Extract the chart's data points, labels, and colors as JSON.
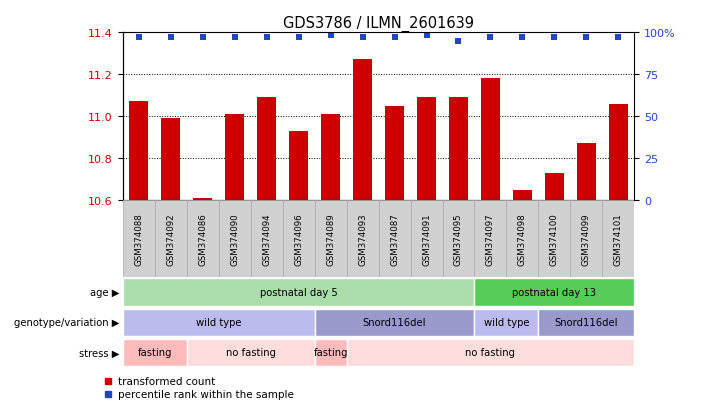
{
  "title": "GDS3786 / ILMN_2601639",
  "samples": [
    "GSM374088",
    "GSM374092",
    "GSM374086",
    "GSM374090",
    "GSM374094",
    "GSM374096",
    "GSM374089",
    "GSM374093",
    "GSM374087",
    "GSM374091",
    "GSM374095",
    "GSM374097",
    "GSM374098",
    "GSM374100",
    "GSM374099",
    "GSM374101"
  ],
  "bar_values": [
    11.07,
    10.99,
    10.61,
    11.01,
    11.09,
    10.93,
    11.01,
    11.27,
    11.05,
    11.09,
    11.09,
    11.18,
    10.65,
    10.73,
    10.87,
    11.06
  ],
  "blue_dot_pct": [
    97,
    97,
    97,
    97,
    97,
    97,
    98,
    97,
    97,
    98,
    95,
    97,
    97,
    97,
    97,
    97
  ],
  "ylim_left": [
    10.6,
    11.4
  ],
  "ylim_right": [
    0,
    100
  ],
  "yticks_left": [
    10.6,
    10.8,
    11.0,
    11.2,
    11.4
  ],
  "yticks_right": [
    0,
    25,
    50,
    75,
    100
  ],
  "bar_color": "#cc0000",
  "dot_color": "#2244cc",
  "bar_bottom": 10.6,
  "annotation_rows": [
    {
      "label": "age",
      "segments": [
        {
          "text": "postnatal day 5",
          "start": 0,
          "end": 11,
          "facecolor": "#aaddaa"
        },
        {
          "text": "postnatal day 13",
          "start": 11,
          "end": 16,
          "facecolor": "#55cc55"
        }
      ]
    },
    {
      "label": "genotype/variation",
      "segments": [
        {
          "text": "wild type",
          "start": 0,
          "end": 6,
          "facecolor": "#bbbbee"
        },
        {
          "text": "Snord116del",
          "start": 6,
          "end": 11,
          "facecolor": "#9999cc"
        },
        {
          "text": "wild type",
          "start": 11,
          "end": 13,
          "facecolor": "#bbbbee"
        },
        {
          "text": "Snord116del",
          "start": 13,
          "end": 16,
          "facecolor": "#9999cc"
        }
      ]
    },
    {
      "label": "stress",
      "segments": [
        {
          "text": "fasting",
          "start": 0,
          "end": 2,
          "facecolor": "#ffbbbb"
        },
        {
          "text": "no fasting",
          "start": 2,
          "end": 6,
          "facecolor": "#ffdddd"
        },
        {
          "text": "fasting",
          "start": 6,
          "end": 7,
          "facecolor": "#ffbbbb"
        },
        {
          "text": "no fasting",
          "start": 7,
          "end": 16,
          "facecolor": "#ffdddd"
        }
      ]
    }
  ],
  "legend_items": [
    {
      "label": "transformed count",
      "color": "#cc0000"
    },
    {
      "label": "percentile rank within the sample",
      "color": "#2244cc"
    }
  ],
  "sample_box_color": "#d0d0d0",
  "sample_box_edge": "#aaaaaa"
}
